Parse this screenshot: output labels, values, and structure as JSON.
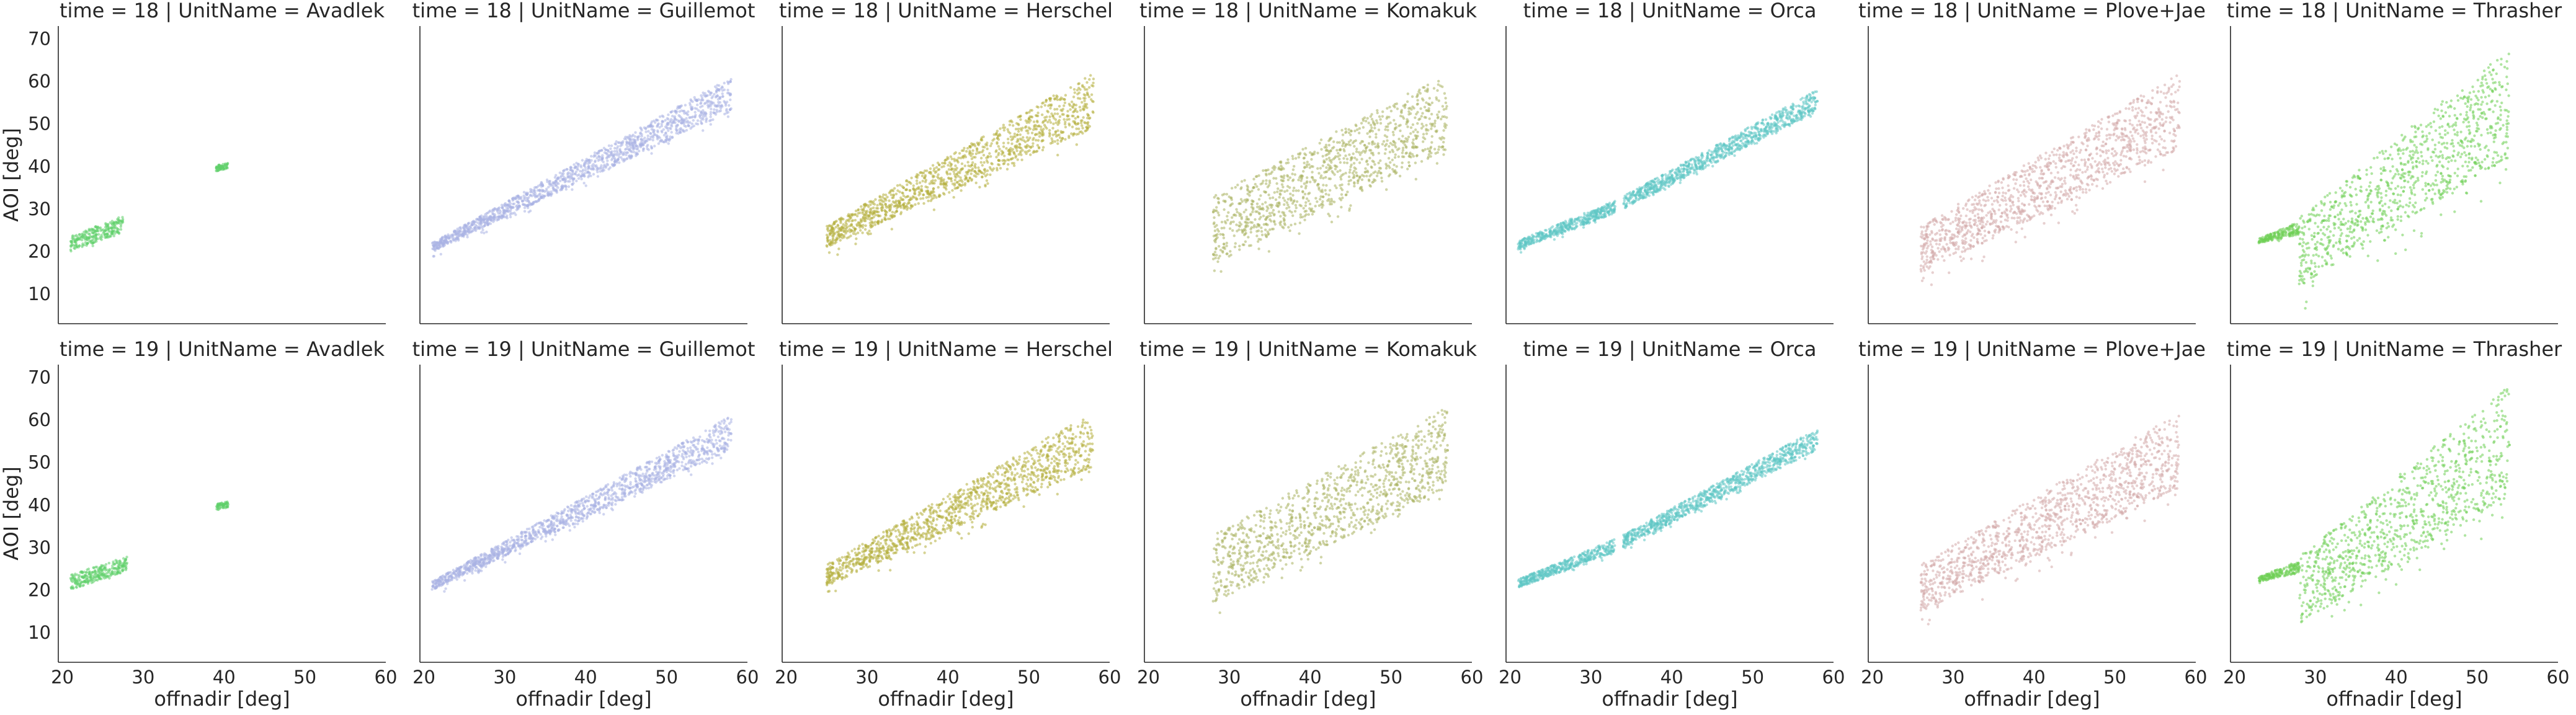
{
  "chart_data": {
    "type": "scatter",
    "layout": "facet-grid",
    "row_variable": "time",
    "col_variable": "UnitName",
    "rows": [
      "18",
      "19"
    ],
    "cols": [
      "Avadlek",
      "Guillemot",
      "Herschel",
      "Komakuk",
      "Orca",
      "Plove+Jae",
      "Thrasher"
    ],
    "xlabel": "offnadir [deg]",
    "ylabel": "AOI [deg]",
    "xlim": [
      19.5,
      60
    ],
    "ylim": [
      3,
      73
    ],
    "xticks": [
      20,
      30,
      40,
      50,
      60
    ],
    "yticks": [
      10,
      20,
      30,
      40,
      50,
      60,
      70
    ],
    "colors": {
      "Avadlek": "#5fcf6a",
      "Guillemot": "#a9b3e3",
      "Herschel": "#b4ae3c",
      "Komakuk": "#a9b260",
      "Orca": "#5ec7c4",
      "Plove+Jae": "#d4a9aa",
      "Thrasher": "#6fcf55"
    },
    "panels": [
      {
        "time": "18",
        "unit": "Avadlek",
        "title": "time = 18 | UnitName = Avadlek",
        "bands": [
          {
            "x": [
              21,
              27.5
            ],
            "y": [
              20,
              24.5
            ],
            "y2": [
              23.5,
              28.5
            ],
            "noise": 1.0
          },
          {
            "x": [
              39,
              40.5
            ],
            "y": [
              38.8,
              39.5
            ],
            "y2": [
              40.2,
              40.8
            ],
            "noise": 0.3
          }
        ]
      },
      {
        "time": "18",
        "unit": "Guillemot",
        "title": "time = 18 | UnitName = Guillemot",
        "bands": [
          {
            "x": [
              21,
              58
            ],
            "y": [
              20,
              53
            ],
            "y2": [
              22,
              61
            ],
            "noise": 2.0
          }
        ]
      },
      {
        "time": "18",
        "unit": "Herschel",
        "title": "time = 18 | UnitName = Herschel",
        "bands": [
          {
            "x": [
              25,
              58
            ],
            "y": [
              21,
              49
            ],
            "y2": [
              26,
              62
            ],
            "noise": 3.5
          }
        ]
      },
      {
        "time": "18",
        "unit": "Komakuk",
        "title": "time = 18 | UnitName = Komakuk",
        "bands": [
          {
            "x": [
              28,
              57
            ],
            "y": [
              17,
              44
            ],
            "y2": [
              33,
              62
            ],
            "noise": 4.5
          }
        ]
      },
      {
        "time": "18",
        "unit": "Orca",
        "title": "time = 18 | UnitName = Orca",
        "bands": [
          {
            "x": [
              21,
              33
            ],
            "y": [
              20.5,
              29
            ],
            "y2": [
              22.5,
              32
            ],
            "noise": 1.2
          },
          {
            "x": [
              34,
              58
            ],
            "y": [
              30,
              53
            ],
            "y2": [
              33,
              58
            ],
            "noise": 1.2
          }
        ]
      },
      {
        "time": "18",
        "unit": "Plove+Jae",
        "title": "time = 18 | UnitName = Plove+Jae",
        "bands": [
          {
            "x": [
              26,
              58
            ],
            "y": [
              15,
              44
            ],
            "y2": [
              26,
              62
            ],
            "noise": 5.0
          }
        ]
      },
      {
        "time": "18",
        "unit": "Thrasher",
        "title": "time = 18 | UnitName = Thrasher",
        "bands": [
          {
            "x": [
              23,
              28
            ],
            "y": [
              22,
              24
            ],
            "y2": [
              23,
              27
            ],
            "noise": 1.0
          },
          {
            "x": [
              28,
              54
            ],
            "y": [
              12,
              42
            ],
            "y2": [
              28,
              68
            ],
            "noise": 8.0
          }
        ]
      },
      {
        "time": "19",
        "unit": "Avadlek",
        "title": "time = 19 | UnitName = Avadlek",
        "bands": [
          {
            "x": [
              21,
              28
            ],
            "y": [
              20,
              24.5
            ],
            "y2": [
              23.5,
              28
            ],
            "noise": 1.0
          },
          {
            "x": [
              39,
              40.5
            ],
            "y": [
              38.8,
              39.5
            ],
            "y2": [
              40.2,
              40.8
            ],
            "noise": 0.3
          }
        ]
      },
      {
        "time": "19",
        "unit": "Guillemot",
        "title": "time = 19 | UnitName = Guillemot",
        "bands": [
          {
            "x": [
              21,
              58
            ],
            "y": [
              20,
              53
            ],
            "y2": [
              22,
              61
            ],
            "noise": 2.0
          }
        ]
      },
      {
        "time": "19",
        "unit": "Herschel",
        "title": "time = 19 | UnitName = Herschel",
        "bands": [
          {
            "x": [
              25,
              58
            ],
            "y": [
              21,
              49
            ],
            "y2": [
              26,
              62
            ],
            "noise": 3.5
          }
        ]
      },
      {
        "time": "19",
        "unit": "Komakuk",
        "title": "time = 19 | UnitName = Komakuk",
        "bands": [
          {
            "x": [
              28,
              57
            ],
            "y": [
              17,
              44
            ],
            "y2": [
              33,
              63
            ],
            "noise": 4.5
          }
        ]
      },
      {
        "time": "19",
        "unit": "Orca",
        "title": "time = 19 | UnitName = Orca",
        "bands": [
          {
            "x": [
              21,
              33
            ],
            "y": [
              20.5,
              29
            ],
            "y2": [
              22.5,
              32
            ],
            "noise": 1.2
          },
          {
            "x": [
              34,
              58
            ],
            "y": [
              30,
              53
            ],
            "y2": [
              33,
              58
            ],
            "noise": 1.2
          }
        ]
      },
      {
        "time": "19",
        "unit": "Plove+Jae",
        "title": "time = 19 | UnitName = Plove+Jae",
        "bands": [
          {
            "x": [
              26,
              58
            ],
            "y": [
              15,
              44
            ],
            "y2": [
              26,
              62
            ],
            "noise": 5.0
          }
        ]
      },
      {
        "time": "19",
        "unit": "Thrasher",
        "title": "time = 19 | UnitName = Thrasher",
        "bands": [
          {
            "x": [
              23,
              28
            ],
            "y": [
              22,
              24
            ],
            "y2": [
              23,
              27
            ],
            "noise": 1.0
          },
          {
            "x": [
              28,
              54
            ],
            "y": [
              12,
              42
            ],
            "y2": [
              28,
              68
            ],
            "noise": 8.0
          }
        ]
      }
    ]
  }
}
